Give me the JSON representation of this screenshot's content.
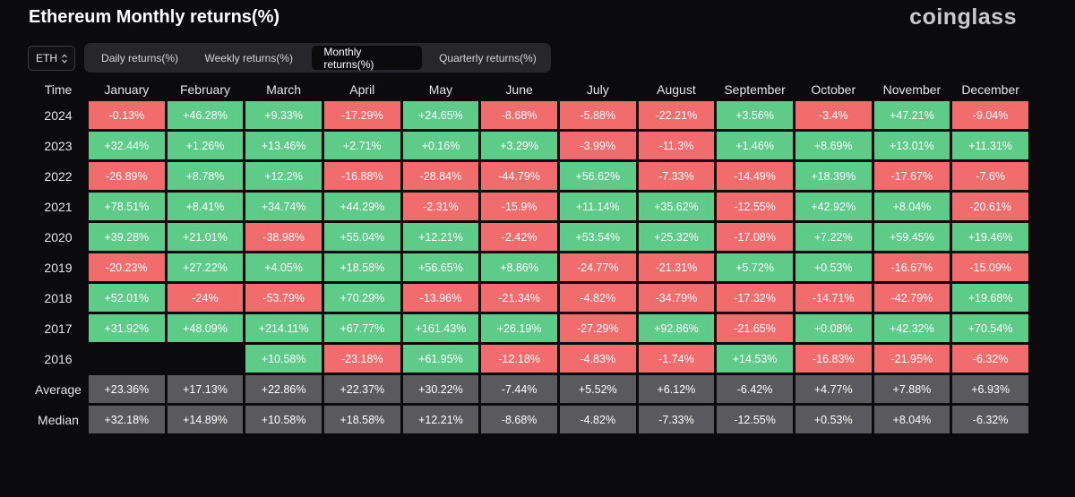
{
  "header": {
    "title": "Ethereum Monthly returns(%)",
    "logo": "coinglass"
  },
  "asset_select": {
    "value": "ETH"
  },
  "tabs": [
    {
      "label": "Daily returns(%)",
      "active": false
    },
    {
      "label": "Weekly returns(%)",
      "active": false
    },
    {
      "label": "Monthly returns(%)",
      "active": true
    },
    {
      "label": "Quarterly returns(%)",
      "active": false
    }
  ],
  "colors": {
    "positive": "#5ecb89",
    "negative": "#f16d6d",
    "stat": "#5a5a5e",
    "background": "#0b0b0d"
  },
  "table": {
    "corner": "Time",
    "months": [
      "January",
      "February",
      "March",
      "April",
      "May",
      "June",
      "July",
      "August",
      "September",
      "October",
      "November",
      "December"
    ],
    "rows": [
      {
        "year": "2024",
        "values": [
          "-0.13%",
          "+46.28%",
          "+9.33%",
          "-17.29%",
          "+24.65%",
          "-8.68%",
          "-5.88%",
          "-22.21%",
          "+3.56%",
          "-3.4%",
          "+47.21%",
          "-9.04%"
        ]
      },
      {
        "year": "2023",
        "values": [
          "+32.44%",
          "+1.26%",
          "+13.46%",
          "+2.71%",
          "+0.16%",
          "+3.29%",
          "-3.99%",
          "-11.3%",
          "+1.46%",
          "+8.69%",
          "+13.01%",
          "+11.31%"
        ]
      },
      {
        "year": "2022",
        "values": [
          "-26.89%",
          "+8.78%",
          "+12.2%",
          "-16.88%",
          "-28.84%",
          "-44.79%",
          "+56.62%",
          "-7.33%",
          "-14.49%",
          "+18.39%",
          "-17.67%",
          "-7.6%"
        ]
      },
      {
        "year": "2021",
        "values": [
          "+78.51%",
          "+8.41%",
          "+34.74%",
          "+44.29%",
          "-2.31%",
          "-15.9%",
          "+11.14%",
          "+35.62%",
          "-12.55%",
          "+42.92%",
          "+8.04%",
          "-20.61%"
        ]
      },
      {
        "year": "2020",
        "values": [
          "+39.28%",
          "+21.01%",
          "-38.98%",
          "+55.04%",
          "+12.21%",
          "-2.42%",
          "+53.54%",
          "+25.32%",
          "-17.08%",
          "+7.22%",
          "+59.45%",
          "+19.46%"
        ]
      },
      {
        "year": "2019",
        "values": [
          "-20.23%",
          "+27.22%",
          "+4.05%",
          "+18.58%",
          "+56.65%",
          "+8.86%",
          "-24.77%",
          "-21.31%",
          "+5.72%",
          "+0.53%",
          "-16.67%",
          "-15.09%"
        ]
      },
      {
        "year": "2018",
        "values": [
          "+52.01%",
          "-24%",
          "-53.79%",
          "+70.29%",
          "-13.96%",
          "-21.34%",
          "-4.82%",
          "-34.79%",
          "-17.32%",
          "-14.71%",
          "-42.79%",
          "+19.68%"
        ]
      },
      {
        "year": "2017",
        "values": [
          "+31.92%",
          "+48.09%",
          "+214.11%",
          "+67.77%",
          "+161.43%",
          "+26.19%",
          "-27.29%",
          "+92.86%",
          "-21.65%",
          "+0.08%",
          "+42.32%",
          "+70.54%"
        ]
      },
      {
        "year": "2016",
        "values": [
          "",
          "",
          "+10.58%",
          "-23.18%",
          "+61.95%",
          "-12.18%",
          "-4.83%",
          "-1.74%",
          "+14.53%",
          "-16.83%",
          "-21.95%",
          "-6.32%"
        ]
      }
    ],
    "stats": [
      {
        "label": "Average",
        "values": [
          "+23.36%",
          "+17.13%",
          "+22.86%",
          "+22.37%",
          "+30.22%",
          "-7.44%",
          "+5.52%",
          "+6.12%",
          "-6.42%",
          "+4.77%",
          "+7.88%",
          "+6.93%"
        ]
      },
      {
        "label": "Median",
        "values": [
          "+32.18%",
          "+14.89%",
          "+10.58%",
          "+18.58%",
          "+12.21%",
          "-8.68%",
          "-4.82%",
          "-7.33%",
          "-12.55%",
          "+0.53%",
          "+8.04%",
          "-6.32%"
        ]
      }
    ]
  }
}
